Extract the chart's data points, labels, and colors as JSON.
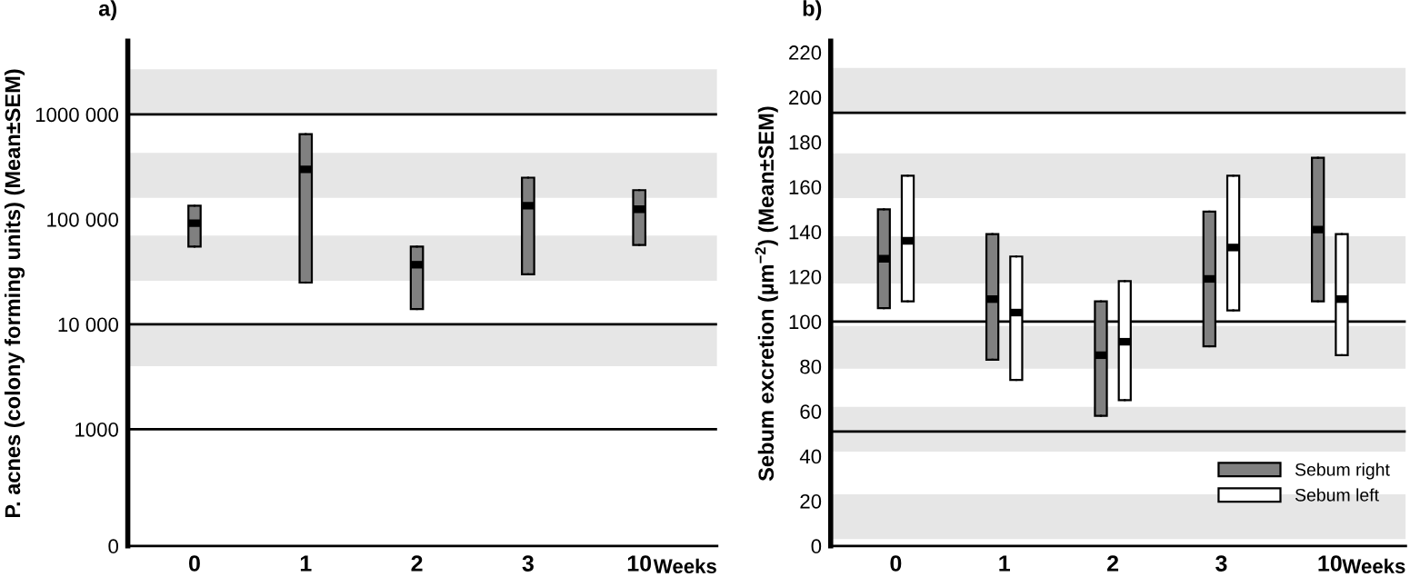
{
  "chart_data": [
    {
      "type": "box",
      "title": "a)",
      "xlabel": "Weeks",
      "ylabel": "P. acnes (colony forming units) (Mean±SEM)",
      "categories": [
        "0",
        "1",
        "2",
        "3",
        "10"
      ],
      "log": true,
      "ylim": [
        0,
        5000000
      ],
      "yticks": [
        0,
        {
          "value": 1000,
          "label": "1000"
        },
        {
          "value": 10000,
          "label": "10 000"
        },
        {
          "value": 100000,
          "label": "100 000"
        },
        {
          "value": 1000000,
          "label": "1000 000"
        }
      ],
      "grid": false,
      "series": [
        {
          "color": "#808080",
          "boxes": [
            {
              "low": 55000,
              "q1": 55000,
              "median": 92000,
              "q3": 135000,
              "high": 135000
            },
            {
              "low": 25000,
              "q1": 25000,
              "median": 300000,
              "q3": 650000,
              "high": 650000
            },
            {
              "low": 14000,
              "q1": 14000,
              "median": 37000,
              "q3": 55000,
              "high": 55000
            },
            {
              "low": 30000,
              "q1": 30000,
              "median": 135000,
              "q3": 250000,
              "high": 250000
            },
            {
              "low": 57000,
              "q1": 57000,
              "median": 125000,
              "q3": 190000,
              "high": 190000
            }
          ]
        }
      ],
      "ref_lines": [
        {
          "axis": "y",
          "value": 1000,
          "color": "#000000"
        },
        {
          "axis": "y",
          "value": 10000,
          "color": "#000000"
        },
        {
          "axis": "y",
          "value": 1000000,
          "color": "#000000"
        }
      ],
      "bands": [
        {
          "axis": "y",
          "from": 4000,
          "to": 10000,
          "color": "#e6e6e6"
        },
        {
          "axis": "y",
          "from": 26000,
          "to": 70000,
          "color": "#e6e6e6"
        },
        {
          "axis": "y",
          "from": 160000,
          "to": 430000,
          "color": "#e6e6e6"
        },
        {
          "axis": "y",
          "from": 1000000,
          "to": 2700000,
          "color": "#e6e6e6"
        }
      ]
    },
    {
      "type": "box",
      "title": "b)",
      "xlabel": "Weeks",
      "ylabel": "Sebum excretion (µm$^{−2}$) (Mean±SEM)",
      "categories": [
        "0",
        "1",
        "2",
        "3",
        "10"
      ],
      "ylim": [
        0,
        225
      ],
      "yticks": [
        0,
        20,
        40,
        60,
        80,
        100,
        120,
        140,
        160,
        180,
        200,
        220
      ],
      "grid": false,
      "legend": "bottom right",
      "series": [
        {
          "name": "Sebum right",
          "color": "#808080",
          "boxes": [
            {
              "low": 106,
              "q1": 106,
              "median": 128,
              "q3": 150,
              "high": 150
            },
            {
              "low": 83,
              "q1": 83,
              "median": 110,
              "q3": 139,
              "high": 139
            },
            {
              "low": 58,
              "q1": 58,
              "median": 85,
              "q3": 109,
              "high": 109
            },
            {
              "low": 89,
              "q1": 89,
              "median": 119,
              "q3": 149,
              "high": 149
            },
            {
              "low": 109,
              "q1": 109,
              "median": 141,
              "q3": 173,
              "high": 173
            }
          ]
        },
        {
          "name": "Sebum left",
          "color": "#ffffff",
          "boxes": [
            {
              "low": 109,
              "q1": 109,
              "median": 136,
              "q3": 165,
              "high": 165
            },
            {
              "low": 74,
              "q1": 74,
              "median": 104,
              "q3": 129,
              "high": 129
            },
            {
              "low": 65,
              "q1": 65,
              "median": 91,
              "q3": 118,
              "high": 118
            },
            {
              "low": 105,
              "q1": 105,
              "median": 133,
              "q3": 165,
              "high": 165
            },
            {
              "low": 85,
              "q1": 85,
              "median": 110,
              "q3": 139,
              "high": 139
            }
          ]
        }
      ],
      "ref_lines": [
        {
          "axis": "y",
          "value": 51,
          "color": "#000000"
        },
        {
          "axis": "y",
          "value": 100,
          "color": "#000000"
        },
        {
          "axis": "y",
          "value": 193,
          "color": "#000000"
        }
      ],
      "bands": [
        {
          "axis": "y",
          "from": 3,
          "to": 23,
          "color": "#e6e6e6"
        },
        {
          "axis": "y",
          "from": 42,
          "to": 62,
          "color": "#e6e6e6"
        },
        {
          "axis": "y",
          "from": 79,
          "to": 98,
          "color": "#e6e6e6"
        },
        {
          "axis": "y",
          "from": 117,
          "to": 138,
          "color": "#e6e6e6"
        },
        {
          "axis": "y",
          "from": 155,
          "to": 175,
          "color": "#e6e6e6"
        },
        {
          "axis": "y",
          "from": 193,
          "to": 213,
          "color": "#e6e6e6"
        }
      ]
    }
  ]
}
